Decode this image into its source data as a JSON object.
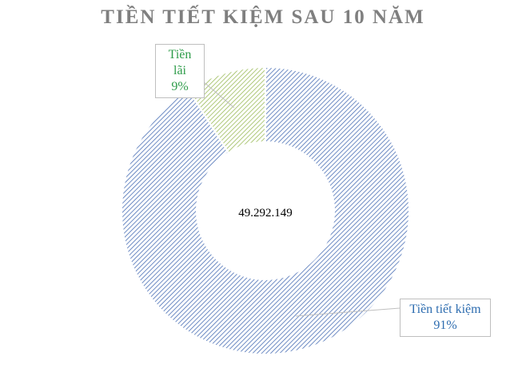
{
  "title": "TIỀN TIẾT KIỆM SAU 10 NĂM",
  "center_label": "49.292.149",
  "chart_data": {
    "type": "pie",
    "variant": "donut",
    "title": "TIỀN TIẾT KIỆM SAU 10 NĂM",
    "center_text": "49.292.149",
    "slices": [
      {
        "name": "Tiền tiết kiệm",
        "percent": 91,
        "percent_label": "91%",
        "color": "#4a6fb5",
        "label_color": "#2e6db0"
      },
      {
        "name": "Tiền lãi",
        "percent": 9,
        "percent_label": "9%",
        "color": "#9bbb59",
        "label_color": "#2e9c4a"
      }
    ],
    "legend": "none"
  }
}
